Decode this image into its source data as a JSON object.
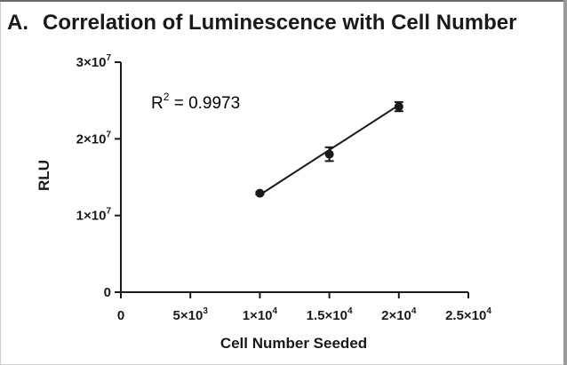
{
  "figure": {
    "panel_label": "A.",
    "title": "Correlation of Luminescence with Cell Number"
  },
  "annotation": {
    "r2_prefix": "R",
    "r2_sup": "2",
    "r2_value": " = 0.9973"
  },
  "colors": {
    "ink": "#1a1a1a"
  },
  "chart_data": {
    "type": "scatter",
    "title": "Correlation of Luminescence with Cell Number",
    "xlabel": "Cell Number Seeded",
    "ylabel": "RLU",
    "xlim": [
      0,
      25000
    ],
    "ylim": [
      0,
      30000000
    ],
    "grid": false,
    "x_ticks": [
      {
        "value": 0,
        "mant": "0",
        "exp": ""
      },
      {
        "value": 5000,
        "mant": "5×10",
        "exp": "3"
      },
      {
        "value": 10000,
        "mant": "1×10",
        "exp": "4"
      },
      {
        "value": 15000,
        "mant": "1.5×10",
        "exp": "4"
      },
      {
        "value": 20000,
        "mant": "2×10",
        "exp": "4"
      },
      {
        "value": 25000,
        "mant": "2.5×10",
        "exp": "4"
      }
    ],
    "y_ticks": [
      {
        "value": 0,
        "mant": "0",
        "exp": ""
      },
      {
        "value": 10000000,
        "mant": "1×10",
        "exp": "7"
      },
      {
        "value": 20000000,
        "mant": "2×10",
        "exp": "7"
      },
      {
        "value": 30000000,
        "mant": "3×10",
        "exp": "7"
      }
    ],
    "series": [
      {
        "x": [
          10000,
          15000,
          20000
        ],
        "y": [
          12900000,
          18000000,
          24200000
        ],
        "error": [
          150000,
          900000,
          600000
        ]
      }
    ],
    "fit_line": {
      "x": [
        10000,
        20000
      ],
      "y": [
        12700000,
        24400000
      ],
      "r_squared": 0.9973
    }
  }
}
